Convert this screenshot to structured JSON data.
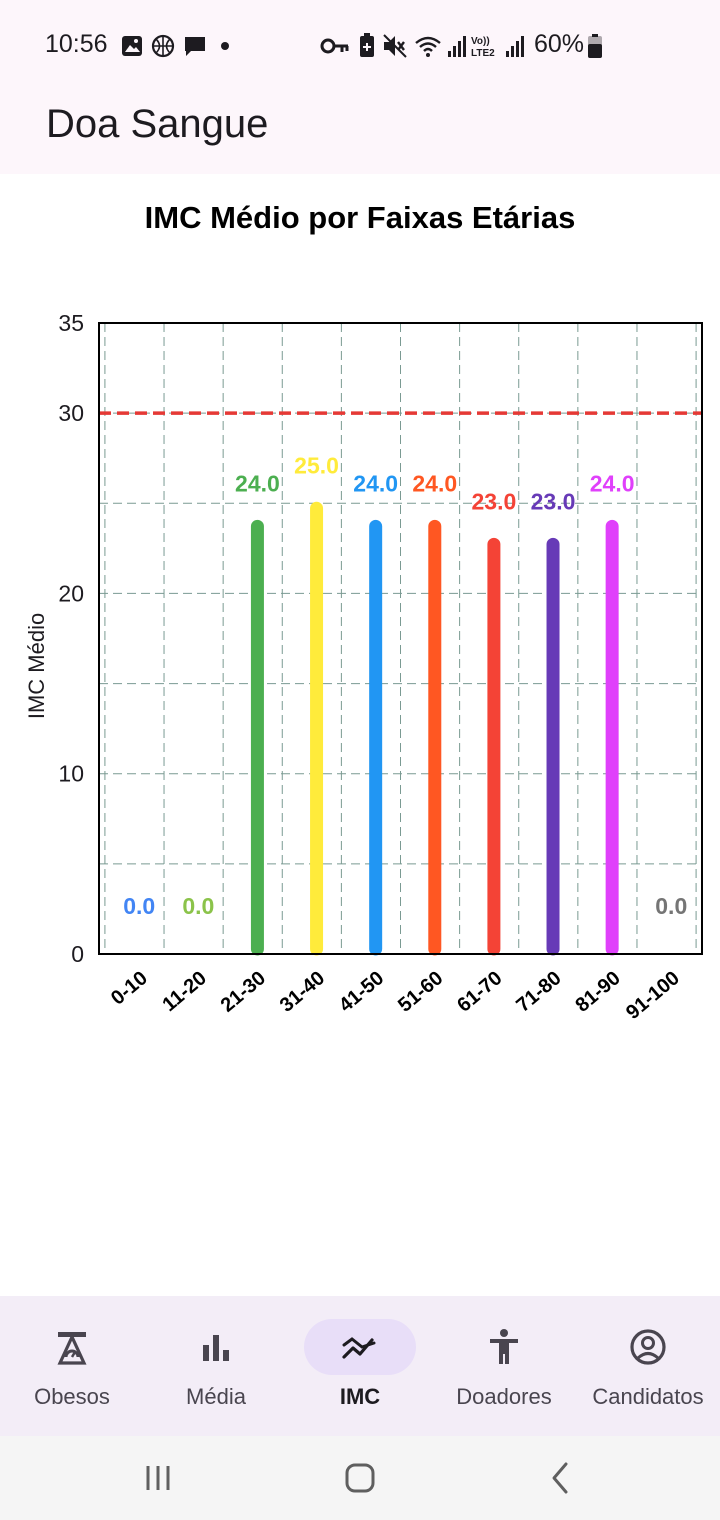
{
  "status_bar": {
    "time": "10:56",
    "battery": "60%",
    "left_icons": [
      "image-icon",
      "basketball-icon",
      "chat-bubble-icon",
      "dot-icon"
    ],
    "right_icons": [
      "key-icon",
      "battery-saver-icon",
      "mute-icon",
      "wifi-icon",
      "signal-icon",
      "volte-lte2-icon",
      "signal-icon",
      "battery-icon"
    ],
    "volte_text": "Vo)) LTE2"
  },
  "app_bar": {
    "title": "Doa Sangue"
  },
  "chart_title": "IMC Médio por Faixas Etárias",
  "chart_data": {
    "type": "bar",
    "title": "IMC Médio por Faixas Etárias",
    "xlabel": "",
    "ylabel": "IMC Médio",
    "ylim": [
      0,
      35
    ],
    "yticks": [
      0,
      10,
      20,
      30,
      35
    ],
    "grid": true,
    "reference_line": {
      "value": 30,
      "color": "#e53935",
      "style": "dashed"
    },
    "categories": [
      "0-10",
      "11-20",
      "21-30",
      "31-40",
      "41-50",
      "51-60",
      "61-70",
      "71-80",
      "81-90",
      "91-100"
    ],
    "values": [
      0.0,
      0.0,
      24.0,
      25.0,
      24.0,
      24.0,
      23.0,
      23.0,
      24.0,
      0.0
    ],
    "value_labels": [
      "0.0",
      "0.0",
      "24.0",
      "25.0",
      "24.0",
      "24.0",
      "23.0",
      "23.0",
      "24.0",
      "0.0"
    ],
    "colors": [
      "#4285f4",
      "#8bc34a",
      "#4caf50",
      "#ffeb3b",
      "#2196f3",
      "#ff5722",
      "#f44336",
      "#673ab7",
      "#e040fb",
      "#757575"
    ]
  },
  "bottom_nav": {
    "items": [
      {
        "label": "Obesos",
        "icon": "scale-icon",
        "active": false
      },
      {
        "label": "Média",
        "icon": "bar-chart-icon",
        "active": false
      },
      {
        "label": "IMC",
        "icon": "trend-icon",
        "active": true
      },
      {
        "label": "Doadores",
        "icon": "person-icon",
        "active": false
      },
      {
        "label": "Candidatos",
        "icon": "account-circle-icon",
        "active": false
      }
    ]
  },
  "system_nav": {
    "buttons": [
      "recents-icon",
      "home-icon",
      "back-icon"
    ]
  }
}
